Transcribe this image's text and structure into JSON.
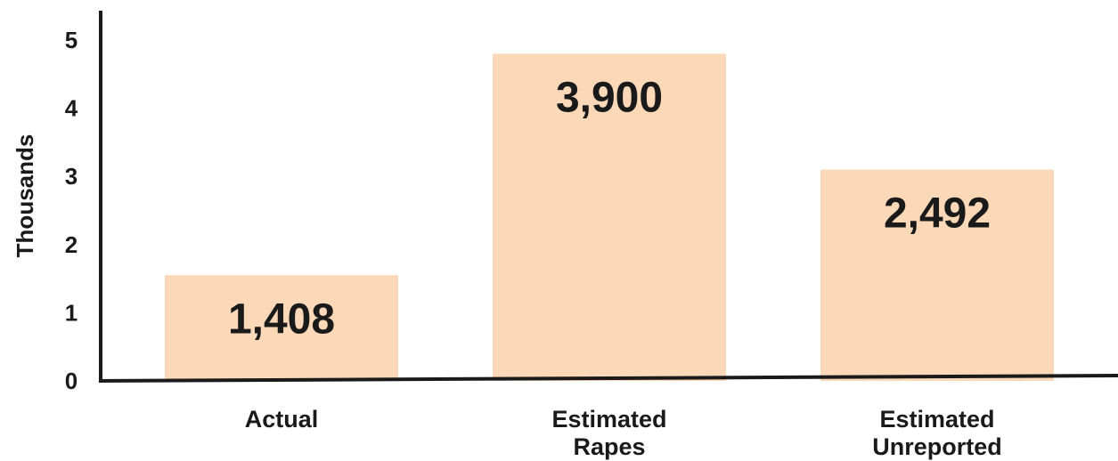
{
  "chart_data": {
    "type": "bar",
    "categories": [
      [
        "Actual"
      ],
      [
        "Estimated",
        "Rapes"
      ],
      [
        "Estimated",
        "Unreported"
      ]
    ],
    "values": [
      1.408,
      3.9,
      2.492
    ],
    "data_labels": [
      "1,408",
      "3,900",
      "2,492"
    ],
    "bar_heights_as_drawn": [
      1.55,
      4.8,
      3.1
    ],
    "ylabel": "Thousands",
    "ylim": [
      0,
      5
    ],
    "yticks": [
      "0",
      "1",
      "2",
      "3",
      "4",
      "5"
    ],
    "grid": false,
    "legend": "none",
    "bar_color": "#fbd9b8",
    "axis_color": "#1a1a1a",
    "text_color": "#1a1a1a"
  }
}
